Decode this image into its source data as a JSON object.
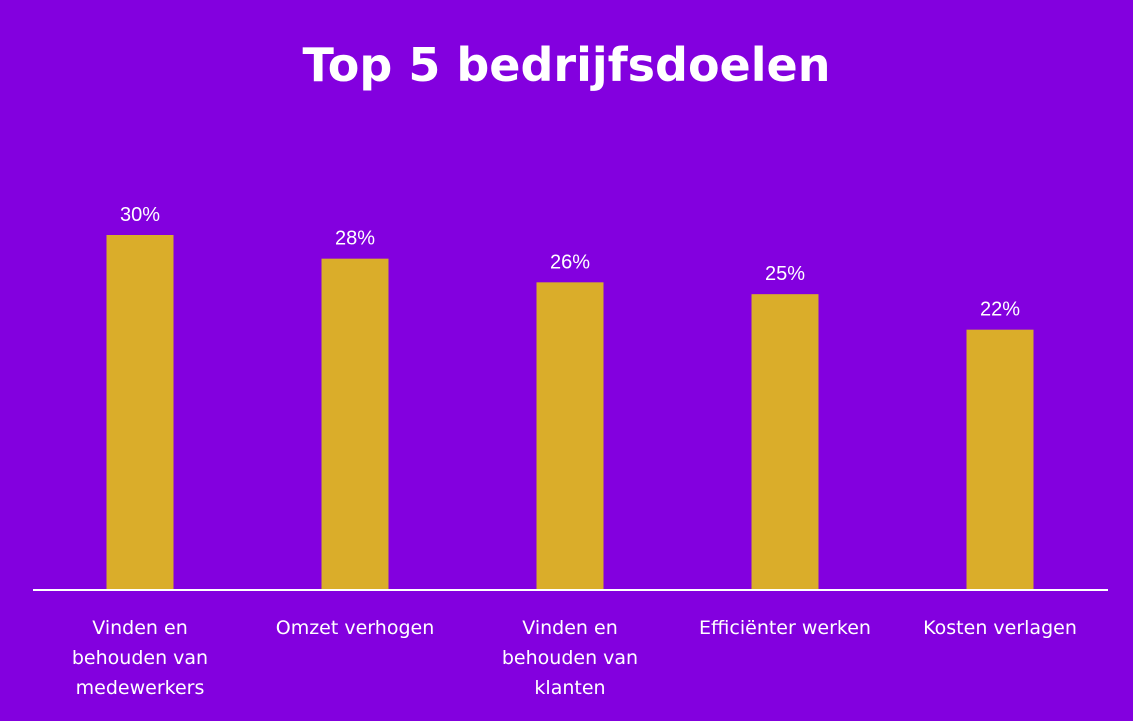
{
  "chart_data": {
    "type": "bar",
    "title": "Top 5 bedrijfsdoelen",
    "categories": [
      "Vinden en behouden van medewerkers",
      "Omzet verhogen",
      "Vinden en behouden van klanten",
      "Efficiënter werken",
      "Kosten verlagen"
    ],
    "category_lines": [
      [
        "Vinden en",
        "behouden van",
        "medewerkers"
      ],
      [
        "Omzet verhogen"
      ],
      [
        "Vinden en",
        "behouden van",
        "klanten"
      ],
      [
        "Efficiënter werken"
      ],
      [
        "Kosten verlagen"
      ]
    ],
    "values": [
      30,
      28,
      26,
      25,
      22
    ],
    "value_labels": [
      "30%",
      "28%",
      "26%",
      "25%",
      "22%"
    ],
    "ylim": [
      0,
      30
    ],
    "grid": false,
    "legend": "none",
    "colors": {
      "background": "#8300df",
      "bar": "#daad2a",
      "text": "#ffffff",
      "axis": "#ffffff"
    }
  }
}
